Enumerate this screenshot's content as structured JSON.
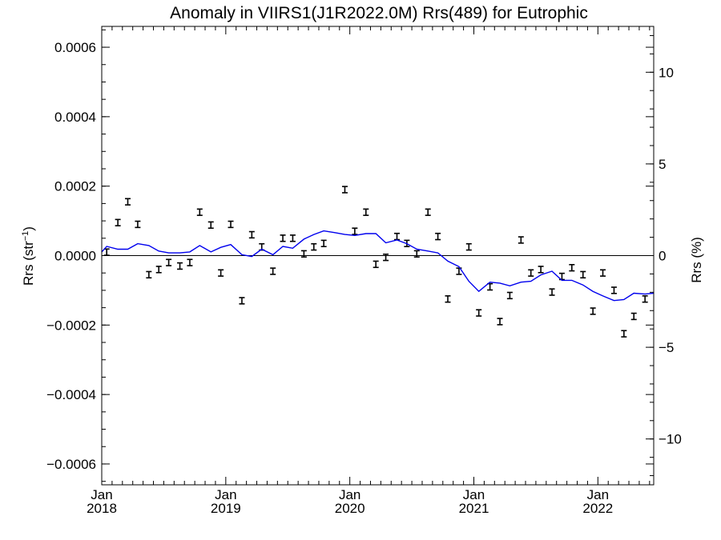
{
  "chart_data": {
    "type": "line",
    "title": "Anomaly in VIIRS1(J1R2022.0M) Rrs(489) for Eutrophic",
    "ylabel_left_base": "Rrs (str",
    "ylabel_left_sup": "−1",
    "ylabel_left_close": ")",
    "ylabel_right": "Rrs (%)",
    "xlabel": "",
    "xlim": [
      2018.0,
      2022.45
    ],
    "ylim_left": [
      -0.00066,
      0.00066
    ],
    "ylim_right": [
      -12.5,
      12.5
    ],
    "x_ticks": [
      {
        "value": 2018.0,
        "line1": "Jan",
        "line2": "2018"
      },
      {
        "value": 2019.0,
        "line1": "Jan",
        "line2": "2019"
      },
      {
        "value": 2020.0,
        "line1": "Jan",
        "line2": "2020"
      },
      {
        "value": 2021.0,
        "line1": "Jan",
        "line2": "2021"
      },
      {
        "value": 2022.0,
        "line1": "Jan",
        "line2": "2022"
      }
    ],
    "y_ticks_left": [
      {
        "value": 0.0006,
        "label": "0.0006"
      },
      {
        "value": 0.0004,
        "label": "0.0004"
      },
      {
        "value": 0.0002,
        "label": "0.0002"
      },
      {
        "value": 0.0,
        "label": "0.0000"
      },
      {
        "value": -0.0002,
        "label": "−0.0002"
      },
      {
        "value": -0.0004,
        "label": "−0.0004"
      },
      {
        "value": -0.0006,
        "label": "−0.0006"
      }
    ],
    "y_ticks_right": [
      {
        "value": 10,
        "label": "10"
      },
      {
        "value": 5,
        "label": "5"
      },
      {
        "value": 0,
        "label": "0"
      },
      {
        "value": -5,
        "label": "−5"
      },
      {
        "value": -10,
        "label": "−10"
      }
    ],
    "zero_line": true,
    "series": [
      {
        "kind": "errorbar",
        "axis": "left",
        "color": "#000000",
        "half_width": 9e-06,
        "points": [
          [
            2018.04,
            1e-05
          ],
          [
            2018.13,
            9.5e-05
          ],
          [
            2018.21,
            0.000155
          ],
          [
            2018.29,
            9e-05
          ],
          [
            2018.38,
            -5.5e-05
          ],
          [
            2018.46,
            -4e-05
          ],
          [
            2018.54,
            -2e-05
          ],
          [
            2018.63,
            -3e-05
          ],
          [
            2018.71,
            -2e-05
          ],
          [
            2018.79,
            0.000125
          ],
          [
            2018.88,
            8.8e-05
          ],
          [
            2018.96,
            -5e-05
          ],
          [
            2019.04,
            9e-05
          ],
          [
            2019.13,
            -0.00013
          ],
          [
            2019.21,
            6e-05
          ],
          [
            2019.29,
            2.5e-05
          ],
          [
            2019.38,
            -4.5e-05
          ],
          [
            2019.46,
            5e-05
          ],
          [
            2019.54,
            5e-05
          ],
          [
            2019.63,
            5e-06
          ],
          [
            2019.71,
            2.5e-05
          ],
          [
            2019.79,
            3.5e-05
          ],
          [
            2019.96,
            0.00019
          ],
          [
            2020.04,
            7e-05
          ],
          [
            2020.13,
            0.000125
          ],
          [
            2020.21,
            -2.5e-05
          ],
          [
            2020.29,
            -5e-06
          ],
          [
            2020.38,
            5.5e-05
          ],
          [
            2020.46,
            3.5e-05
          ],
          [
            2020.54,
            5e-06
          ],
          [
            2020.63,
            0.000125
          ],
          [
            2020.71,
            5.5e-05
          ],
          [
            2020.79,
            -0.000125
          ],
          [
            2020.88,
            -4.5e-05
          ],
          [
            2020.96,
            2.5e-05
          ],
          [
            2021.04,
            -0.000165
          ],
          [
            2021.13,
            -9e-05
          ],
          [
            2021.21,
            -0.00019
          ],
          [
            2021.29,
            -0.000115
          ],
          [
            2021.38,
            4.5e-05
          ],
          [
            2021.46,
            -5e-05
          ],
          [
            2021.54,
            -4e-05
          ],
          [
            2021.63,
            -0.000105
          ],
          [
            2021.71,
            -6e-05
          ],
          [
            2021.79,
            -3.5e-05
          ],
          [
            2021.88,
            -5.5e-05
          ],
          [
            2021.96,
            -0.00016
          ],
          [
            2022.04,
            -5e-05
          ],
          [
            2022.13,
            -0.0001
          ],
          [
            2022.21,
            -0.000225
          ],
          [
            2022.29,
            -0.000175
          ],
          [
            2022.38,
            -0.000125
          ]
        ]
      },
      {
        "kind": "line",
        "axis": "right",
        "color": "#0000ee",
        "points": [
          [
            2018.0,
            0.2
          ],
          [
            2018.04,
            0.5
          ],
          [
            2018.13,
            0.35
          ],
          [
            2018.21,
            0.35
          ],
          [
            2018.29,
            0.65
          ],
          [
            2018.38,
            0.55
          ],
          [
            2018.46,
            0.25
          ],
          [
            2018.54,
            0.15
          ],
          [
            2018.63,
            0.15
          ],
          [
            2018.71,
            0.2
          ],
          [
            2018.79,
            0.55
          ],
          [
            2018.88,
            0.2
          ],
          [
            2018.96,
            0.45
          ],
          [
            2019.04,
            0.6
          ],
          [
            2019.13,
            0.05
          ],
          [
            2019.21,
            -0.05
          ],
          [
            2019.29,
            0.35
          ],
          [
            2019.38,
            0.05
          ],
          [
            2019.46,
            0.5
          ],
          [
            2019.54,
            0.4
          ],
          [
            2019.63,
            0.9
          ],
          [
            2019.71,
            1.15
          ],
          [
            2019.79,
            1.35
          ],
          [
            2019.88,
            1.25
          ],
          [
            2019.96,
            1.15
          ],
          [
            2020.04,
            1.1
          ],
          [
            2020.13,
            1.2
          ],
          [
            2020.21,
            1.2
          ],
          [
            2020.29,
            0.7
          ],
          [
            2020.38,
            0.85
          ],
          [
            2020.46,
            0.65
          ],
          [
            2020.54,
            0.35
          ],
          [
            2020.63,
            0.25
          ],
          [
            2020.71,
            0.15
          ],
          [
            2020.79,
            -0.3
          ],
          [
            2020.88,
            -0.6
          ],
          [
            2020.96,
            -1.4
          ],
          [
            2021.04,
            -1.95
          ],
          [
            2021.13,
            -1.45
          ],
          [
            2021.21,
            -1.5
          ],
          [
            2021.29,
            -1.65
          ],
          [
            2021.38,
            -1.45
          ],
          [
            2021.46,
            -1.4
          ],
          [
            2021.54,
            -1.05
          ],
          [
            2021.63,
            -0.85
          ],
          [
            2021.71,
            -1.35
          ],
          [
            2021.79,
            -1.35
          ],
          [
            2021.88,
            -1.6
          ],
          [
            2021.96,
            -1.95
          ],
          [
            2022.04,
            -2.2
          ],
          [
            2022.13,
            -2.45
          ],
          [
            2022.21,
            -2.4
          ],
          [
            2022.29,
            -2.05
          ],
          [
            2022.38,
            -2.1
          ],
          [
            2022.45,
            -2.05
          ]
        ]
      }
    ]
  }
}
